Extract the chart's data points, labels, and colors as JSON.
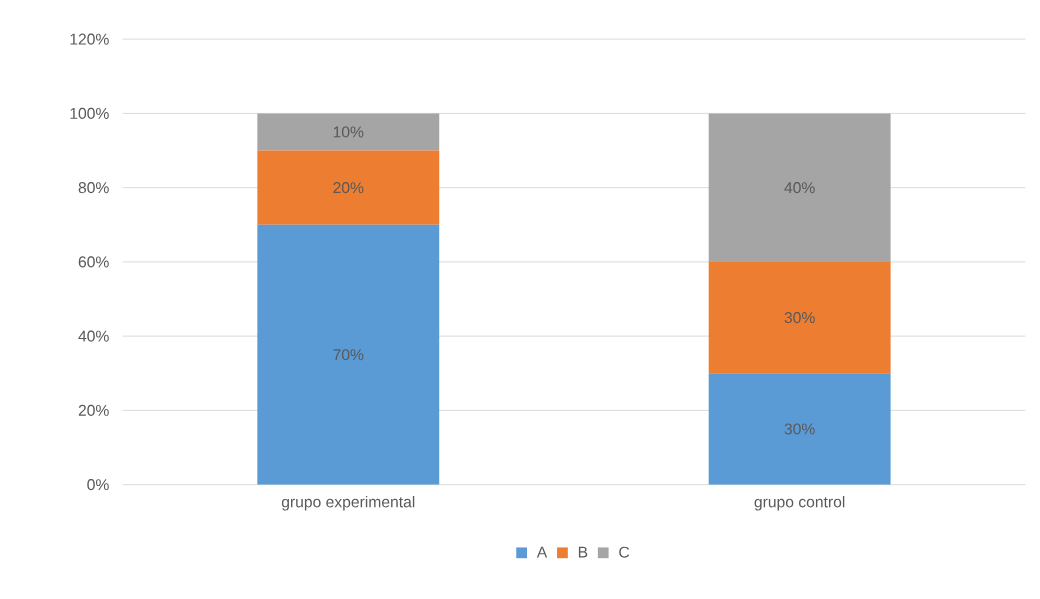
{
  "chart_data": {
    "type": "bar",
    "stacked": true,
    "categories": [
      "grupo experimental",
      "grupo control"
    ],
    "series": [
      {
        "name": "A",
        "color": "#5b9bd5",
        "values": [
          70,
          30
        ],
        "value_labels": [
          "70%",
          "30%"
        ]
      },
      {
        "name": "B",
        "color": "#ed7d31",
        "values": [
          20,
          30
        ],
        "value_labels": [
          "20%",
          "30%"
        ]
      },
      {
        "name": "C",
        "color": "#a5a5a5",
        "values": [
          10,
          40
        ],
        "value_labels": [
          "10%",
          "40%"
        ]
      }
    ],
    "ylim": [
      0,
      120
    ],
    "yticks": [
      {
        "value": 0,
        "label": "0%"
      },
      {
        "value": 20,
        "label": "20%"
      },
      {
        "value": 40,
        "label": "40%"
      },
      {
        "value": 60,
        "label": "60%"
      },
      {
        "value": 80,
        "label": "80%"
      },
      {
        "value": 100,
        "label": "100%"
      },
      {
        "value": 120,
        "label": "120%"
      }
    ],
    "grid": "y",
    "legend": "bottom"
  }
}
